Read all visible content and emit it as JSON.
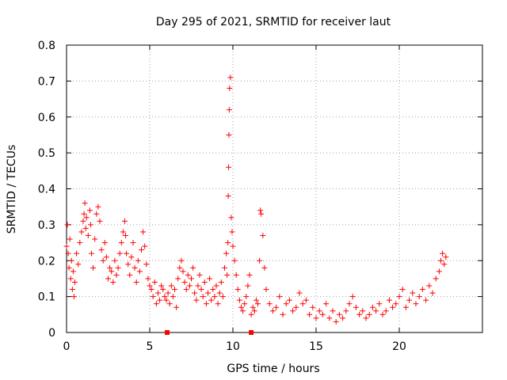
{
  "chart_data": {
    "type": "scatter",
    "title": "Day 295 of 2021, SRMTID for receiver laut",
    "xlabel": "GPS time / hours",
    "ylabel": "SRMTID / TECUs",
    "xlim": [
      0,
      25
    ],
    "ylim": [
      0,
      0.8
    ],
    "x_ticks": [
      0,
      5,
      10,
      15,
      20
    ],
    "x_tick_labels": [
      "0",
      "5",
      "10",
      "15",
      "20"
    ],
    "y_ticks": [
      0,
      0.1,
      0.2,
      0.3,
      0.4,
      0.5,
      0.6,
      0.7,
      0.8
    ],
    "y_tick_labels": [
      "0",
      "0.1",
      "0.2",
      "0.3",
      "0.4",
      "0.5",
      "0.6",
      "0.7",
      "0.8"
    ],
    "grid": true,
    "marker": "plus",
    "series_color": "#ff0000",
    "series": [
      {
        "name": "SRMTID",
        "x": [
          0.0,
          0.05,
          0.1,
          0.15,
          0.2,
          0.25,
          0.3,
          0.35,
          0.4,
          0.45,
          0.5,
          0.6,
          0.7,
          0.8,
          0.9,
          1.0,
          1.05,
          1.1,
          1.15,
          1.2,
          1.3,
          1.4,
          1.45,
          1.5,
          1.6,
          1.7,
          1.8,
          1.9,
          2.0,
          2.1,
          2.2,
          2.3,
          2.4,
          2.5,
          2.6,
          2.7,
          2.8,
          2.9,
          3.0,
          3.1,
          3.2,
          3.3,
          3.4,
          3.5,
          3.55,
          3.6,
          3.7,
          3.8,
          3.9,
          4.0,
          4.1,
          4.2,
          4.3,
          4.4,
          4.5,
          4.6,
          4.7,
          4.8,
          4.9,
          5.0,
          5.1,
          5.2,
          5.3,
          5.4,
          5.5,
          5.6,
          5.7,
          5.8,
          5.9,
          6.0,
          6.1,
          6.2,
          6.3,
          6.4,
          6.5,
          6.6,
          6.7,
          6.8,
          6.9,
          7.0,
          7.1,
          7.2,
          7.3,
          7.4,
          7.5,
          7.6,
          7.7,
          7.8,
          7.9,
          8.0,
          8.1,
          8.2,
          8.3,
          8.4,
          8.5,
          8.6,
          8.7,
          8.8,
          8.9,
          9.0,
          9.1,
          9.2,
          9.3,
          9.4,
          9.5,
          9.6,
          9.65,
          9.7,
          9.72,
          9.74,
          9.76,
          9.78,
          9.8,
          9.85,
          9.9,
          9.95,
          10.0,
          10.1,
          10.2,
          10.3,
          10.4,
          10.5,
          10.6,
          10.7,
          10.8,
          10.9,
          11.0,
          11.1,
          11.2,
          11.3,
          11.4,
          11.5,
          11.6,
          11.65,
          11.7,
          11.8,
          11.9,
          12.0,
          12.2,
          12.4,
          12.6,
          12.8,
          13.0,
          13.2,
          13.4,
          13.6,
          13.8,
          14.0,
          14.2,
          14.4,
          14.6,
          14.8,
          15.0,
          15.2,
          15.4,
          15.6,
          15.8,
          16.0,
          16.2,
          16.4,
          16.6,
          16.8,
          17.0,
          17.2,
          17.4,
          17.6,
          17.8,
          18.0,
          18.2,
          18.4,
          18.6,
          18.8,
          19.0,
          19.2,
          19.4,
          19.6,
          19.8,
          20.0,
          20.2,
          20.4,
          20.6,
          20.8,
          21.0,
          21.2,
          21.4,
          21.6,
          21.8,
          22.0,
          22.2,
          22.4,
          22.5,
          22.6,
          22.7,
          22.8
        ],
        "y": [
          0.24,
          0.3,
          0.22,
          0.18,
          0.26,
          0.15,
          0.2,
          0.12,
          0.17,
          0.1,
          0.14,
          0.22,
          0.19,
          0.25,
          0.28,
          0.31,
          0.33,
          0.36,
          0.29,
          0.32,
          0.27,
          0.34,
          0.3,
          0.22,
          0.18,
          0.26,
          0.33,
          0.35,
          0.31,
          0.23,
          0.2,
          0.25,
          0.21,
          0.15,
          0.18,
          0.17,
          0.14,
          0.2,
          0.16,
          0.18,
          0.22,
          0.25,
          0.28,
          0.31,
          0.27,
          0.22,
          0.19,
          0.16,
          0.21,
          0.25,
          0.18,
          0.14,
          0.2,
          0.17,
          0.23,
          0.28,
          0.24,
          0.19,
          0.15,
          0.13,
          0.12,
          0.1,
          0.14,
          0.08,
          0.11,
          0.09,
          0.13,
          0.12,
          0.1,
          0.09,
          0.11,
          0.08,
          0.13,
          0.1,
          0.12,
          0.07,
          0.15,
          0.18,
          0.2,
          0.17,
          0.14,
          0.12,
          0.16,
          0.13,
          0.15,
          0.18,
          0.11,
          0.09,
          0.13,
          0.16,
          0.12,
          0.1,
          0.14,
          0.08,
          0.11,
          0.15,
          0.09,
          0.12,
          0.1,
          0.13,
          0.08,
          0.11,
          0.14,
          0.1,
          0.18,
          0.22,
          0.16,
          0.25,
          0.38,
          0.46,
          0.55,
          0.62,
          0.68,
          0.71,
          0.32,
          0.28,
          0.24,
          0.2,
          0.16,
          0.12,
          0.09,
          0.07,
          0.06,
          0.08,
          0.1,
          0.13,
          0.16,
          0.05,
          0.07,
          0.06,
          0.09,
          0.08,
          0.2,
          0.34,
          0.33,
          0.27,
          0.18,
          0.12,
          0.08,
          0.06,
          0.07,
          0.1,
          0.05,
          0.08,
          0.09,
          0.06,
          0.07,
          0.11,
          0.08,
          0.09,
          0.05,
          0.07,
          0.04,
          0.06,
          0.05,
          0.08,
          0.04,
          0.06,
          0.03,
          0.05,
          0.04,
          0.06,
          0.08,
          0.1,
          0.07,
          0.05,
          0.06,
          0.04,
          0.05,
          0.07,
          0.06,
          0.08,
          0.05,
          0.06,
          0.09,
          0.07,
          0.08,
          0.1,
          0.12,
          0.07,
          0.09,
          0.11,
          0.08,
          0.1,
          0.12,
          0.09,
          0.13,
          0.11,
          0.15,
          0.17,
          0.2,
          0.22,
          0.19,
          0.21
        ]
      }
    ],
    "bar_markers": [
      {
        "x": 6.05,
        "y": 0.0
      },
      {
        "x": 11.1,
        "y": 0.0
      }
    ]
  }
}
